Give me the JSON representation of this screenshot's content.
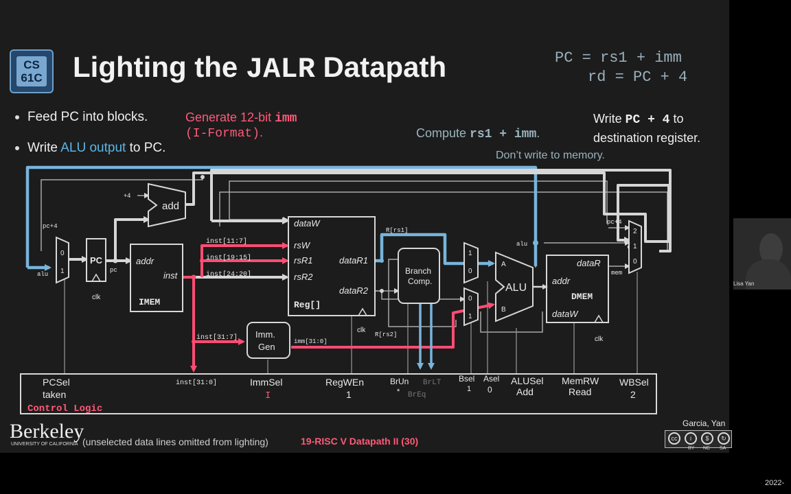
{
  "slide": {
    "logo_text_top": "CS",
    "logo_text_bottom": "61C",
    "title_pre": "Lighting the ",
    "title_mono": "JALR",
    "title_post": " Datapath",
    "eq_line1": "PC = rs1 + imm",
    "eq_line2": "rd = PC + 4",
    "bullet1": "Feed PC into blocks.",
    "bullet2_pre": "Write ",
    "bullet2_hl": "ALU output",
    "bullet2_post": " to PC.",
    "gen_line1_pre": "Generate 12-bit ",
    "gen_line1_mono": "imm",
    "gen_line2_mono": "(I-Format)",
    "gen_line2_post": ".",
    "compute_pre": "Compute ",
    "compute_mono": "rs1 + imm",
    "compute_post": ".",
    "write_pre": "Write ",
    "write_mono": "PC + 4",
    "write_post": " to",
    "write_line2": "destination register.",
    "dont_write": "Don’t write to memory.",
    "footer_berkeley": "Berkeley",
    "footer_berkeley_sub": "UNIVERSITY OF CALIFORNIA",
    "footer_note": "(unselected data lines omitted from lighting)",
    "footer_lecture": "19-RISC V Datapath II (30)",
    "authors": "Garcia, Yan",
    "cc_labels": [
      "BY",
      "NC",
      "SA"
    ],
    "webcam_name": "Lisa Yan",
    "date": "2022-"
  },
  "diagram": {
    "plus4": "+4",
    "add": "add",
    "pc_plus4_left": "pc+4",
    "alu_left": "alu",
    "pc_block": "PC",
    "pc_out": "pc",
    "clk": "clk",
    "mux0": "0",
    "mux1": "1",
    "mux2": "2",
    "imem_addr": "addr",
    "imem_inst": "inst",
    "imem": "IMEM",
    "inst_11_7": "inst[11:7]",
    "inst_19_15": "inst[19:15]",
    "inst_24_20": "inst[24:20]",
    "inst_31_7": "inst[31:7]",
    "inst_31_0": "inst[31:0]",
    "dataW": "dataW",
    "rsW": "rsW",
    "rsR1": "rsR1",
    "rsR2": "rsR2",
    "dataR1": "dataR1",
    "dataR2": "dataR2",
    "reg": "Reg[]",
    "r_rs1": "R[rs1]",
    "r_rs2": "R[rs2]",
    "branch1": "Branch",
    "branch2": "Comp.",
    "alu": "ALU",
    "alu_a": "A",
    "alu_b": "B",
    "dmem_dataR": "dataR",
    "dmem_addr": "addr",
    "dmem": "DMEM",
    "dmem_dataW": "dataW",
    "imm1": "Imm.",
    "imm2": "Gen",
    "imm_out": "imm[31:0]",
    "pc_plus4_right": "pc+4",
    "alu_right": "alu",
    "mem": "mem",
    "control_logic": "Control Logic"
  },
  "controls": {
    "pcsel": "PCSel",
    "taken": "taken",
    "immsel": "ImmSel",
    "immsel_val": "I",
    "regwen": "RegWEn",
    "regwen_val": "1",
    "brun": "BrUn",
    "brun_val": "*",
    "brlt": "BrLT",
    "breq": "BrEq",
    "bsel": "Bsel",
    "bsel_val": "1",
    "asel": "Asel",
    "asel_val": "0",
    "alusel": "ALUSel",
    "alusel_val": "Add",
    "memrw": "MemRW",
    "memrw_val": "Read",
    "wbsel": "WBSel",
    "wbsel_val": "2"
  }
}
